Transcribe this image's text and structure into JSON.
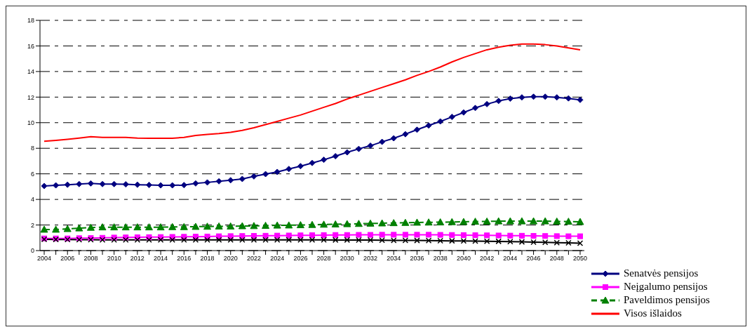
{
  "chart_data": {
    "type": "line",
    "categories": [
      "2004",
      null,
      "2006",
      null,
      "2008",
      null,
      "2010",
      null,
      "2012",
      null,
      "2014",
      null,
      "2016",
      null,
      "2018",
      null,
      "2020",
      null,
      "2022",
      null,
      "2024",
      null,
      "2026",
      null,
      "2028",
      null,
      "2030",
      null,
      "2032",
      null,
      "2034",
      null,
      "2036",
      null,
      "2038",
      null,
      "2040",
      null,
      "2042",
      null,
      "2044",
      null,
      "2046",
      null,
      "2048",
      null,
      "2050"
    ],
    "ylim": [
      0,
      18
    ],
    "yticks": [
      0,
      2,
      4,
      6,
      8,
      10,
      12,
      14,
      16,
      18
    ],
    "grid": "y",
    "legend": "bottom right",
    "series": [
      {
        "name": "Senatvės pensijos",
        "color": "#000080",
        "marker": "diamond",
        "line_style": "solid",
        "values": [
          5.05,
          5.1,
          5.15,
          5.2,
          5.25,
          5.2,
          5.2,
          5.18,
          5.15,
          5.13,
          5.1,
          5.1,
          5.12,
          5.25,
          5.33,
          5.42,
          5.5,
          5.6,
          5.8,
          5.98,
          6.15,
          6.38,
          6.6,
          6.85,
          7.1,
          7.38,
          7.68,
          7.95,
          8.2,
          8.5,
          8.78,
          9.1,
          9.45,
          9.78,
          10.1,
          10.45,
          10.8,
          11.15,
          11.45,
          11.7,
          11.88,
          11.98,
          12.03,
          12.03,
          11.98,
          11.9,
          11.78
        ]
      },
      {
        "name": "Neįgalumo pensijos",
        "color": "#ff00ff",
        "marker": "square",
        "line_style": "solid",
        "values": [
          0.95,
          0.95,
          0.95,
          0.97,
          0.98,
          1.0,
          1.02,
          1.03,
          1.04,
          1.05,
          1.06,
          1.07,
          1.08,
          1.09,
          1.1,
          1.12,
          1.13,
          1.14,
          1.15,
          1.16,
          1.17,
          1.18,
          1.19,
          1.2,
          1.21,
          1.22,
          1.22,
          1.23,
          1.23,
          1.24,
          1.24,
          1.24,
          1.24,
          1.24,
          1.23,
          1.22,
          1.21,
          1.2,
          1.19,
          1.18,
          1.17,
          1.16,
          1.15,
          1.14,
          1.13,
          1.12,
          1.12
        ]
      },
      {
        "name": "Paveldimos pensijos",
        "color": "#008000",
        "marker": "triangle",
        "line_style": "dashed",
        "values": [
          1.65,
          1.65,
          1.7,
          1.75,
          1.8,
          1.83,
          1.83,
          1.83,
          1.83,
          1.83,
          1.83,
          1.85,
          1.85,
          1.87,
          1.88,
          1.9,
          1.9,
          1.92,
          1.93,
          1.95,
          1.97,
          1.98,
          2.0,
          2.02,
          2.04,
          2.06,
          2.08,
          2.1,
          2.12,
          2.14,
          2.16,
          2.18,
          2.2,
          2.21,
          2.22,
          2.24,
          2.25,
          2.27,
          2.28,
          2.3,
          2.3,
          2.3,
          2.3,
          2.3,
          2.28,
          2.27,
          2.25
        ]
      },
      {
        "name": "Visos išlaidos",
        "color": "#ff0000",
        "marker": "none",
        "line_style": "solid",
        "values": [
          8.55,
          8.62,
          8.7,
          8.8,
          8.9,
          8.85,
          8.85,
          8.85,
          8.8,
          8.78,
          8.78,
          8.78,
          8.85,
          9.0,
          9.08,
          9.15,
          9.25,
          9.4,
          9.6,
          9.85,
          10.1,
          10.35,
          10.6,
          10.9,
          11.2,
          11.5,
          11.85,
          12.15,
          12.45,
          12.75,
          13.05,
          13.35,
          13.7,
          14.0,
          14.35,
          14.75,
          15.1,
          15.4,
          15.7,
          15.9,
          16.05,
          16.15,
          16.15,
          16.1,
          16.0,
          15.85,
          15.7
        ]
      },
      {
        "color": "#000000",
        "marker": "cross",
        "line_style": "solid",
        "values": [
          0.88,
          0.87,
          0.86,
          0.85,
          0.85,
          0.84,
          0.84,
          0.84,
          0.84,
          0.84,
          0.84,
          0.84,
          0.84,
          0.84,
          0.84,
          0.84,
          0.84,
          0.84,
          0.84,
          0.84,
          0.84,
          0.84,
          0.84,
          0.84,
          0.84,
          0.83,
          0.83,
          0.82,
          0.82,
          0.81,
          0.8,
          0.8,
          0.79,
          0.78,
          0.77,
          0.76,
          0.75,
          0.74,
          0.73,
          0.72,
          0.7,
          0.68,
          0.66,
          0.64,
          0.62,
          0.6,
          0.58
        ]
      }
    ]
  }
}
